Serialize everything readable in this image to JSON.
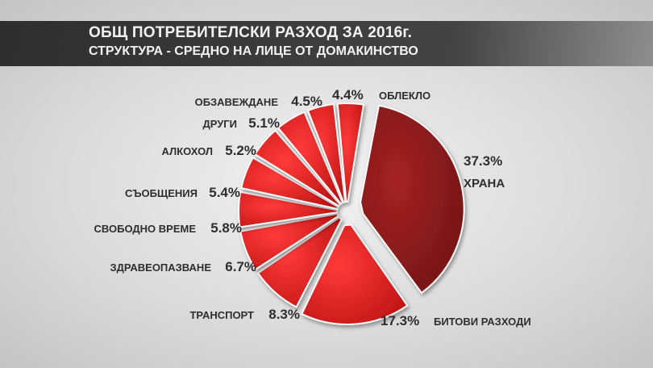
{
  "chart_data": {
    "type": "pie",
    "title": "ОБЩ ПОТРЕБИТЕЛСКИ РАЗХОД ЗА 2016г.",
    "subtitle": "СТРУКТУРА - СРЕДНО НА ЛИЦЕ ОТ ДОМАКИНСТВО",
    "slices": [
      {
        "label": "ХРАНА",
        "value": 37.3,
        "value_label": "37.3%",
        "color": "#8b1c1c"
      },
      {
        "label": "БИТОВИ РАЗХОДИ",
        "value": 17.3,
        "value_label": "17.3%",
        "color": "#d71f1f"
      },
      {
        "label": "ТРАНСПОРТ",
        "value": 8.3,
        "value_label": "8.3%",
        "color": "#d71f1f"
      },
      {
        "label": "ЗДРАВЕОПАЗВАНЕ",
        "value": 6.7,
        "value_label": "6.7%",
        "color": "#d71f1f"
      },
      {
        "label": "СВОБОДНО ВРЕМЕ",
        "value": 5.8,
        "value_label": "5.8%",
        "color": "#d71f1f"
      },
      {
        "label": "СЪОБЩЕНИЯ",
        "value": 5.4,
        "value_label": "5.4%",
        "color": "#d71f1f"
      },
      {
        "label": "АЛКОХОЛ",
        "value": 5.2,
        "value_label": "5.2%",
        "color": "#d71f1f"
      },
      {
        "label": "ДРУГИ",
        "value": 5.1,
        "value_label": "5.1%",
        "color": "#d71f1f"
      },
      {
        "label": "ОБЗАВЕЖДАНЕ",
        "value": 4.5,
        "value_label": "4.5%",
        "color": "#d71f1f"
      },
      {
        "label": "ОБЛЕКЛО",
        "value": 4.4,
        "value_label": "4.4%",
        "color": "#d71f1f"
      }
    ]
  }
}
